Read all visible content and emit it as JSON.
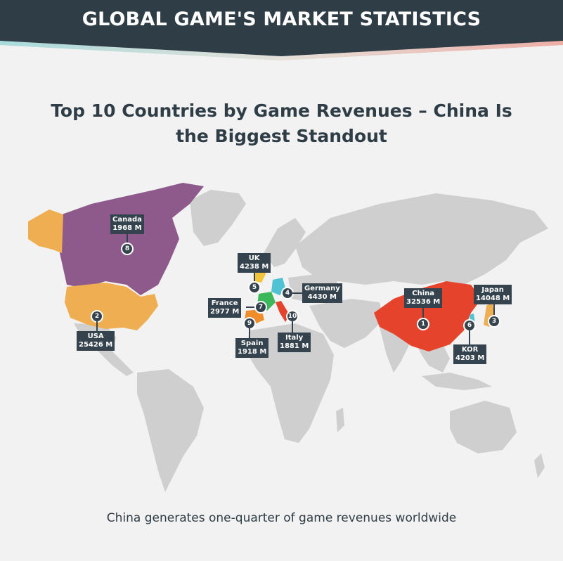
{
  "header": {
    "title": "GLOBAL GAME'S MARKET STATISTICS"
  },
  "subtitle": "Top 10 Countries by Game Revenues – China Is the Biggest Standout",
  "footer_note": "China generates one-quarter of game revenues worldwide",
  "colors": {
    "banner": "#2f3d46",
    "land": "#cfcfcf",
    "china": "#e5432c",
    "usa": "#f0ae52",
    "canada": "#8e5a8c",
    "japan": "#f0ae52",
    "uk": "#f2c43a",
    "germany": "#4fc3d3",
    "france": "#3cb85a",
    "spain": "#f08c2a",
    "italy": "#e5432c",
    "kor": "#4fc3d3",
    "label_bg": "#34434d",
    "label_text": "#ffffff",
    "value_text": "#ffffff"
  },
  "markers": [
    {
      "rank": "1",
      "country": "China",
      "value": "32536 M"
    },
    {
      "rank": "2",
      "country": "USA",
      "value": "25426 M"
    },
    {
      "rank": "3",
      "country": "Japan",
      "value": "14048 M"
    },
    {
      "rank": "4",
      "country": "Germany",
      "value": "4430 M"
    },
    {
      "rank": "5",
      "country": "UK",
      "value": "4238 M"
    },
    {
      "rank": "6",
      "country": "KOR",
      "value": "4203 M"
    },
    {
      "rank": "7",
      "country": "France",
      "value": "2977 M"
    },
    {
      "rank": "8",
      "country": "Canada",
      "value": "1968 M"
    },
    {
      "rank": "9",
      "country": "Spain",
      "value": "1918 M"
    },
    {
      "rank": "10",
      "country": "Italy",
      "value": "1881 M"
    }
  ]
}
